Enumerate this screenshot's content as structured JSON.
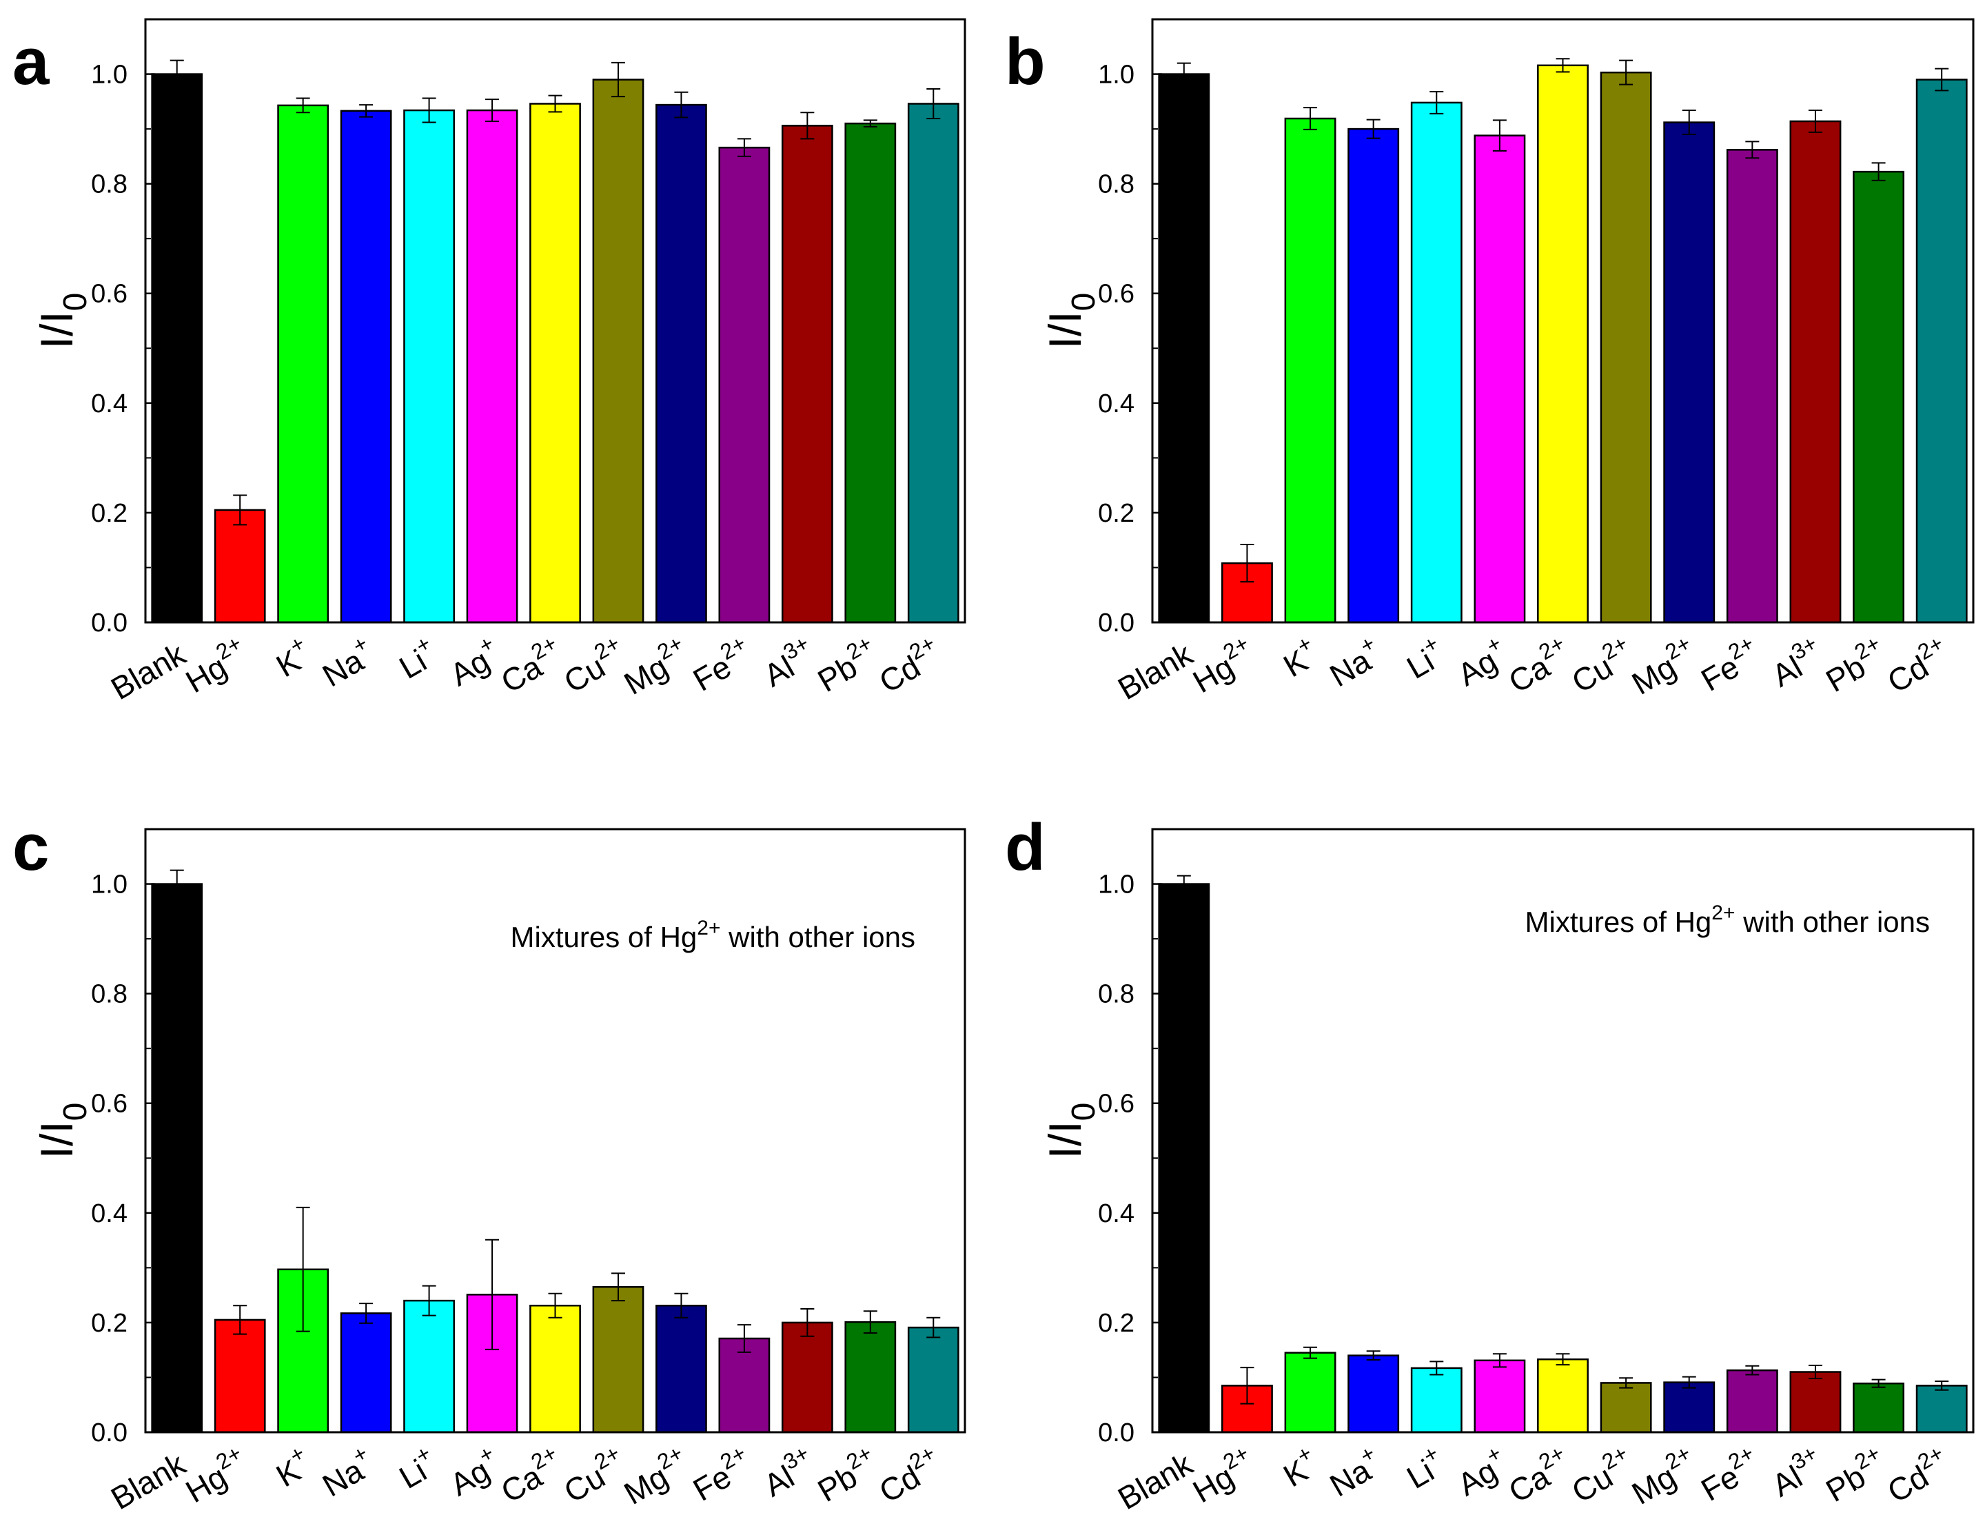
{
  "colors": [
    "#000000",
    "#ff0000",
    "#00ff00",
    "#0000ff",
    "#00ffff",
    "#ff00ff",
    "#ffff00",
    "#808000",
    "#000080",
    "#880088",
    "#990000",
    "#007700",
    "#008080"
  ],
  "chart_data": [
    {
      "type": "bar",
      "panel": "a",
      "ylabel": "I/I",
      "ylabel_sub": "0",
      "ylim": [
        0,
        1.1
      ],
      "yticks": [
        "0.0",
        "0.2",
        "0.4",
        "0.6",
        "0.8",
        "1.0"
      ],
      "categories": [
        {
          "base": "Blank",
          "sup": ""
        },
        {
          "base": "Hg",
          "sup": "2+"
        },
        {
          "base": "K",
          "sup": "+"
        },
        {
          "base": "Na",
          "sup": "+"
        },
        {
          "base": "Li",
          "sup": "+"
        },
        {
          "base": "Ag",
          "sup": "+"
        },
        {
          "base": "Ca",
          "sup": "2+"
        },
        {
          "base": "Cu",
          "sup": "2+"
        },
        {
          "base": "Mg",
          "sup": "2+"
        },
        {
          "base": "Fe",
          "sup": "2+"
        },
        {
          "base": "Al",
          "sup": "3+"
        },
        {
          "base": "Pb",
          "sup": "2+"
        },
        {
          "base": "Cd",
          "sup": "2+"
        }
      ],
      "values": [
        1.0,
        0.205,
        0.943,
        0.933,
        0.934,
        0.934,
        0.946,
        0.99,
        0.944,
        0.866,
        0.906,
        0.91,
        0.946
      ],
      "errors": [
        0.025,
        0.027,
        0.013,
        0.011,
        0.022,
        0.02,
        0.015,
        0.031,
        0.023,
        0.016,
        0.024,
        0.006,
        0.027
      ]
    },
    {
      "type": "bar",
      "panel": "b",
      "ylabel": "I/I",
      "ylabel_sub": "0",
      "ylim": [
        0,
        1.1
      ],
      "yticks": [
        "0.0",
        "0.2",
        "0.4",
        "0.6",
        "0.8",
        "1.0"
      ],
      "categories": [
        {
          "base": "Blank",
          "sup": ""
        },
        {
          "base": "Hg",
          "sup": "2+"
        },
        {
          "base": "K",
          "sup": "+"
        },
        {
          "base": "Na",
          "sup": "+"
        },
        {
          "base": "Li",
          "sup": "+"
        },
        {
          "base": "Ag",
          "sup": "+"
        },
        {
          "base": "Ca",
          "sup": "2+"
        },
        {
          "base": "Cu",
          "sup": "2+"
        },
        {
          "base": "Mg",
          "sup": "2+"
        },
        {
          "base": "Fe",
          "sup": "2+"
        },
        {
          "base": "Al",
          "sup": "3+"
        },
        {
          "base": "Pb",
          "sup": "2+"
        },
        {
          "base": "Cd",
          "sup": "2+"
        }
      ],
      "values": [
        1.0,
        0.108,
        0.919,
        0.9,
        0.948,
        0.888,
        1.016,
        1.003,
        0.912,
        0.862,
        0.914,
        0.822,
        0.99
      ],
      "errors": [
        0.02,
        0.034,
        0.02,
        0.017,
        0.02,
        0.028,
        0.012,
        0.022,
        0.022,
        0.015,
        0.02,
        0.016,
        0.02
      ]
    },
    {
      "type": "bar",
      "panel": "c",
      "ylabel": "I/I",
      "ylabel_sub": "0",
      "ylim": [
        0,
        1.1
      ],
      "yticks": [
        "0.0",
        "0.2",
        "0.4",
        "0.6",
        "0.8",
        "1.0"
      ],
      "annotation": {
        "pre": "Mixtures of Hg",
        "sup": "2+",
        "post": " with other ions"
      },
      "categories": [
        {
          "base": "Blank",
          "sup": ""
        },
        {
          "base": "Hg",
          "sup": "2+"
        },
        {
          "base": "K",
          "sup": "+"
        },
        {
          "base": "Na",
          "sup": "+"
        },
        {
          "base": "Li",
          "sup": "+"
        },
        {
          "base": "Ag",
          "sup": "+"
        },
        {
          "base": "Ca",
          "sup": "2+"
        },
        {
          "base": "Cu",
          "sup": "2+"
        },
        {
          "base": "Mg",
          "sup": "2+"
        },
        {
          "base": "Fe",
          "sup": "2+"
        },
        {
          "base": "Al",
          "sup": "3+"
        },
        {
          "base": "Pb",
          "sup": "2+"
        },
        {
          "base": "Cd",
          "sup": "2+"
        }
      ],
      "values": [
        1.0,
        0.205,
        0.297,
        0.217,
        0.24,
        0.251,
        0.231,
        0.265,
        0.231,
        0.171,
        0.2,
        0.201,
        0.191
      ],
      "errors": [
        0.025,
        0.026,
        0.113,
        0.018,
        0.027,
        0.1,
        0.022,
        0.025,
        0.022,
        0.025,
        0.025,
        0.02,
        0.018
      ]
    },
    {
      "type": "bar",
      "panel": "d",
      "ylabel": "I/I",
      "ylabel_sub": "0",
      "ylim": [
        0,
        1.1
      ],
      "yticks": [
        "0.0",
        "0.2",
        "0.4",
        "0.6",
        "0.8",
        "1.0"
      ],
      "annotation": {
        "pre": "Mixtures of Hg",
        "sup": "2+",
        "post": " with other ions"
      },
      "categories": [
        {
          "base": "Blank",
          "sup": ""
        },
        {
          "base": "Hg",
          "sup": "2+"
        },
        {
          "base": "K",
          "sup": "+"
        },
        {
          "base": "Na",
          "sup": "+"
        },
        {
          "base": "Li",
          "sup": "+"
        },
        {
          "base": "Ag",
          "sup": "+"
        },
        {
          "base": "Ca",
          "sup": "2+"
        },
        {
          "base": "Cu",
          "sup": "2+"
        },
        {
          "base": "Mg",
          "sup": "2+"
        },
        {
          "base": "Fe",
          "sup": "2+"
        },
        {
          "base": "Al",
          "sup": "3+"
        },
        {
          "base": "Pb",
          "sup": "2+"
        },
        {
          "base": "Cd",
          "sup": "2+"
        }
      ],
      "values": [
        1.0,
        0.085,
        0.145,
        0.14,
        0.117,
        0.131,
        0.133,
        0.09,
        0.091,
        0.113,
        0.11,
        0.089,
        0.085
      ],
      "errors": [
        0.015,
        0.033,
        0.01,
        0.008,
        0.012,
        0.012,
        0.01,
        0.009,
        0.01,
        0.008,
        0.012,
        0.007,
        0.008
      ]
    }
  ]
}
